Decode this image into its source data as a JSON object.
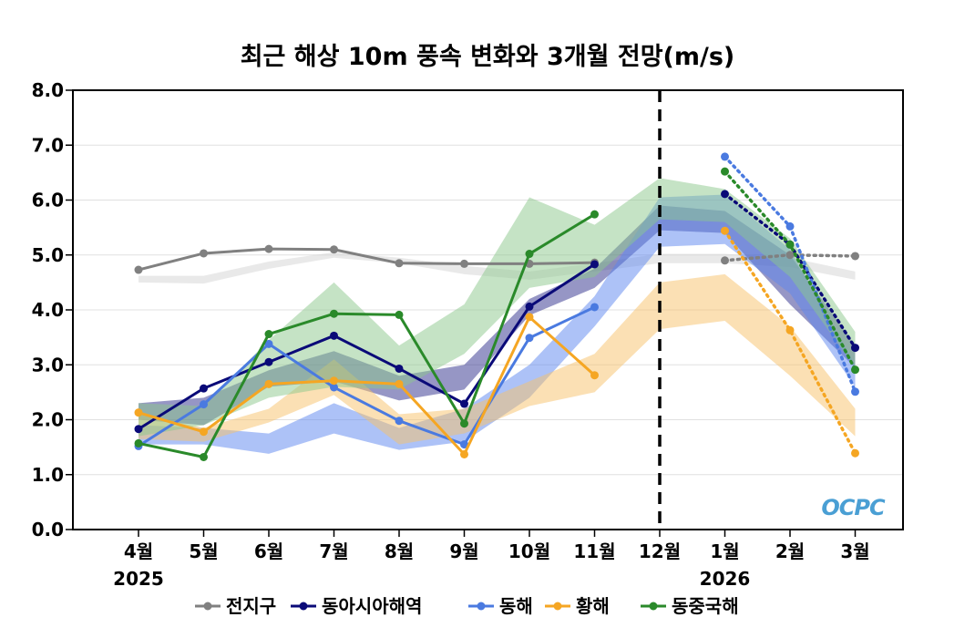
{
  "chart_data": {
    "type": "line",
    "title": "최근 해상 10m 풍속 변화와 3개월 전망(m/s)",
    "categories": [
      "4월",
      "5월",
      "6월",
      "7월",
      "8월",
      "9월",
      "10월",
      "11월",
      "12월",
      "1월",
      "2월",
      "3월"
    ],
    "year_labels": [
      {
        "text": "2025",
        "category_index": 0
      },
      {
        "text": "2026",
        "category_index": 9
      }
    ],
    "ylim": [
      0,
      8
    ],
    "yticks": [
      "0.0",
      "1.0",
      "2.0",
      "3.0",
      "4.0",
      "5.0",
      "6.0",
      "7.0",
      "8.0"
    ],
    "grid": true,
    "divider_category_index": 8,
    "watermark": "OCPC",
    "series": [
      {
        "name": "전지구",
        "color": "#808080",
        "band_color": "#d4d4d4",
        "observed": [
          4.73,
          5.03,
          5.11,
          5.1,
          4.85,
          4.84,
          4.84,
          4.86,
          null,
          null,
          null,
          null
        ],
        "forecast": [
          null,
          null,
          null,
          null,
          null,
          null,
          null,
          null,
          null,
          4.9,
          5.0,
          4.98
        ],
        "band_lower": [
          4.5,
          4.48,
          4.75,
          4.95,
          4.85,
          4.65,
          4.55,
          4.7,
          4.85,
          4.85,
          4.78,
          4.55
        ],
        "band_upper": [
          4.62,
          4.62,
          4.88,
          5.05,
          4.95,
          4.8,
          4.7,
          4.85,
          5.02,
          5.02,
          4.95,
          4.7
        ]
      },
      {
        "name": "동아시아해역",
        "color": "#0a0a78",
        "band_color": "#2e2e8c",
        "observed": [
          1.83,
          2.57,
          3.05,
          3.53,
          2.93,
          2.29,
          4.06,
          4.83,
          null,
          null,
          null,
          null
        ],
        "forecast": [
          null,
          null,
          null,
          null,
          null,
          null,
          null,
          null,
          null,
          6.11,
          5.19,
          3.31
        ],
        "band_lower": [
          2.0,
          1.9,
          2.6,
          2.7,
          2.35,
          2.55,
          3.9,
          4.4,
          5.45,
          5.4,
          4.1,
          2.95
        ],
        "band_upper": [
          2.3,
          2.4,
          2.9,
          3.25,
          2.8,
          3.0,
          4.2,
          4.75,
          5.9,
          5.8,
          5.0,
          3.35
        ]
      },
      {
        "name": "동해",
        "color": "#4a7ae0",
        "band_color": "#5b85f0",
        "observed": [
          1.52,
          2.28,
          3.38,
          2.59,
          1.98,
          1.55,
          3.49,
          4.05,
          null,
          null,
          null,
          null
        ],
        "forecast": [
          null,
          null,
          null,
          null,
          null,
          null,
          null,
          null,
          null,
          6.79,
          5.52,
          2.51
        ],
        "band_lower": [
          1.55,
          1.55,
          1.38,
          1.75,
          1.45,
          1.6,
          2.4,
          3.7,
          5.15,
          5.2,
          4.3,
          2.6
        ],
        "band_upper": [
          1.9,
          1.85,
          1.75,
          2.3,
          1.85,
          2.2,
          3.0,
          4.25,
          6.05,
          6.1,
          5.1,
          3.0
        ]
      },
      {
        "name": "황해",
        "color": "#f5a623",
        "band_color": "#f7c26a",
        "observed": [
          2.13,
          1.78,
          2.65,
          2.71,
          2.65,
          1.37,
          3.87,
          2.81,
          null,
          null,
          null,
          null
        ],
        "forecast": [
          null,
          null,
          null,
          null,
          null,
          null,
          null,
          null,
          null,
          5.44,
          3.63,
          1.39
        ],
        "band_lower": [
          1.65,
          1.6,
          1.95,
          2.45,
          1.55,
          1.75,
          2.25,
          2.5,
          3.65,
          3.8,
          2.8,
          1.7
        ],
        "band_upper": [
          2.1,
          1.85,
          2.2,
          3.1,
          2.1,
          2.2,
          2.7,
          3.2,
          4.5,
          4.65,
          3.7,
          2.2
        ]
      },
      {
        "name": "동중국해",
        "color": "#2a8a2a",
        "band_color": "#8cc88c",
        "observed": [
          1.57,
          1.32,
          3.56,
          3.93,
          3.91,
          1.93,
          5.02,
          5.74,
          null,
          null,
          null,
          null
        ],
        "forecast": [
          null,
          null,
          null,
          null,
          null,
          null,
          null,
          null,
          null,
          6.52,
          5.19,
          2.91
        ],
        "band_lower": [
          1.7,
          1.9,
          2.4,
          2.6,
          2.55,
          3.2,
          4.4,
          4.6,
          5.65,
          5.6,
          4.6,
          2.95
        ],
        "band_upper": [
          2.3,
          2.25,
          3.45,
          4.5,
          3.35,
          4.1,
          6.05,
          5.55,
          6.4,
          6.2,
          5.3,
          3.6
        ]
      }
    ]
  }
}
